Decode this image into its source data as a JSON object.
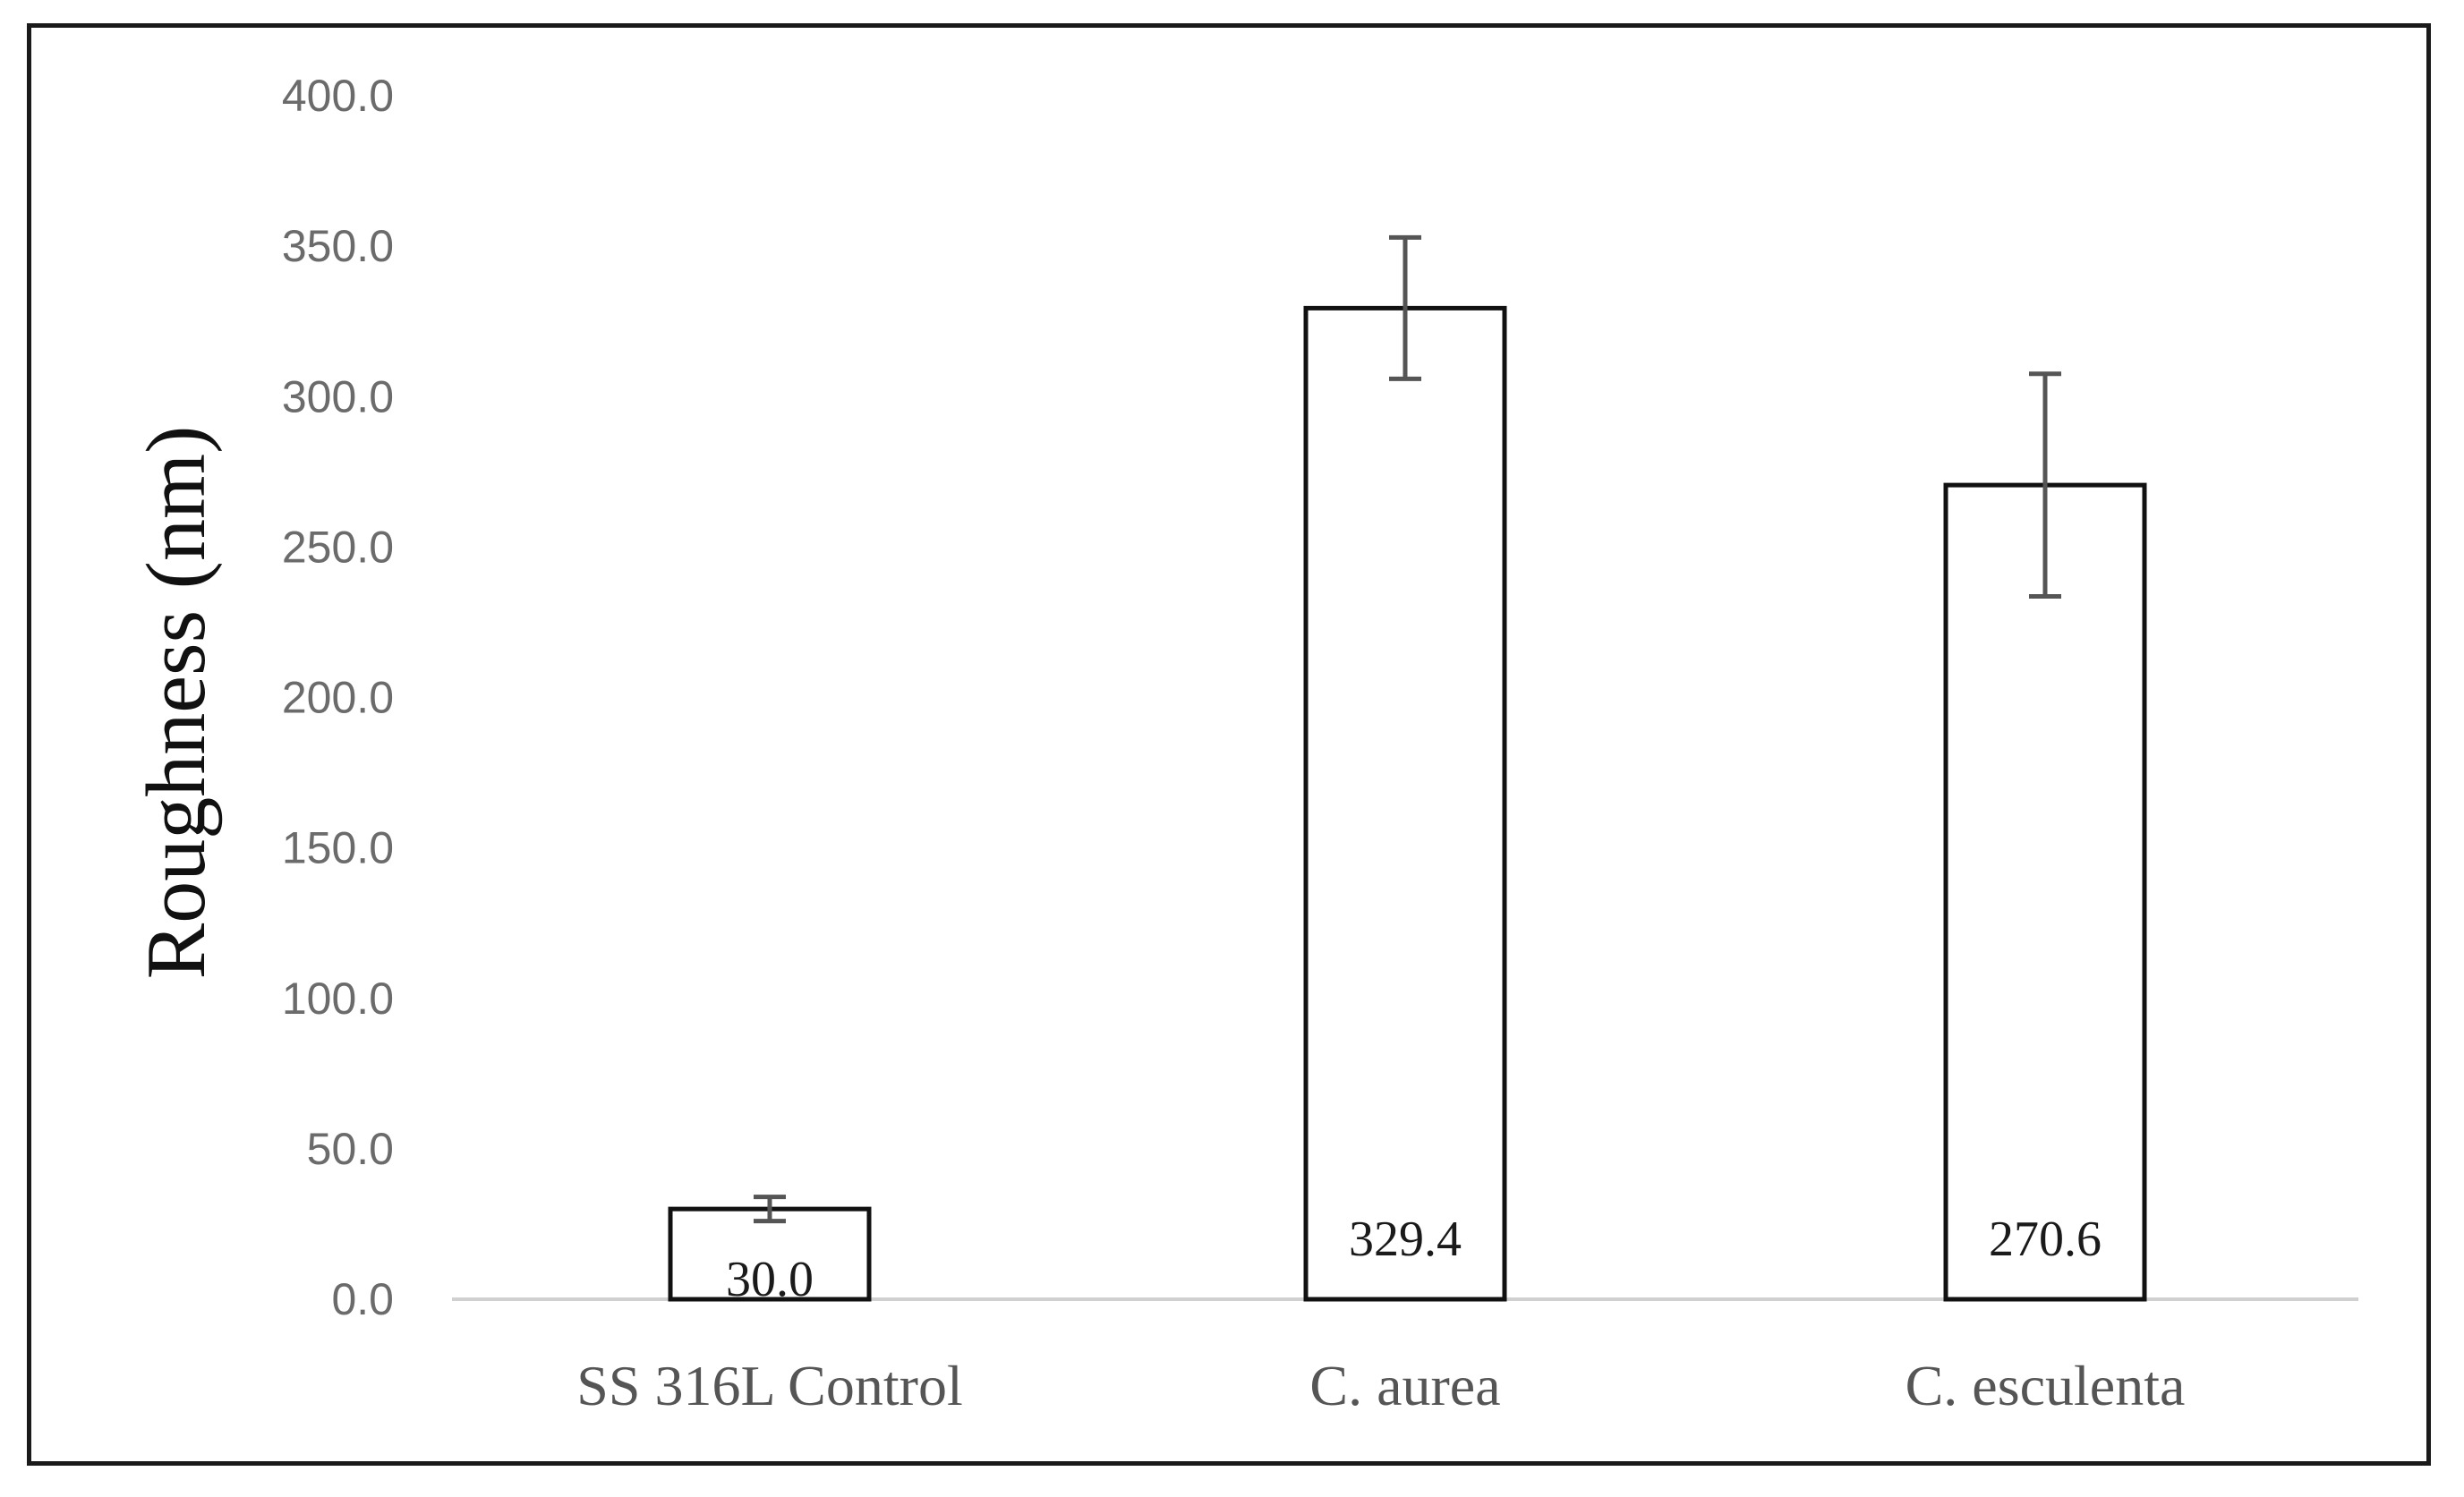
{
  "chart_data": {
    "type": "bar",
    "categories": [
      "SS 316L Control",
      "C. aurea",
      "C. esculenta"
    ],
    "values": [
      30.0,
      329.4,
      270.6
    ],
    "value_labels": [
      "30.0",
      "329.4",
      "270.6"
    ],
    "error_bars": [
      4,
      23.5,
      37
    ],
    "title": "",
    "xlabel": "",
    "ylabel": "Roughness (nm)",
    "ylim": [
      0,
      400
    ],
    "yticks": [
      0,
      50,
      100,
      150,
      200,
      250,
      300,
      350,
      400
    ],
    "ytick_labels": [
      "0.0",
      "50.0",
      "100.0",
      "150.0",
      "200.0",
      "250.0",
      "300.0",
      "350.0",
      "400.0"
    ],
    "grid": false,
    "legend": "none",
    "colors": {
      "bar_fill": "#ffffff",
      "bar_stroke": "#111111",
      "error": "#555555",
      "axis": "#d0d0d0",
      "tick_text": "#6b6b6b"
    }
  }
}
